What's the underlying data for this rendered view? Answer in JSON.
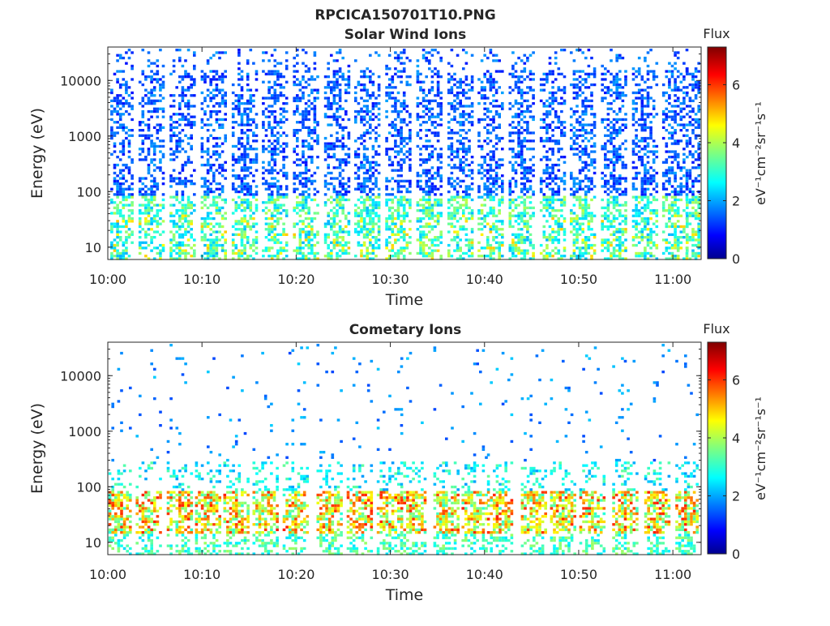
{
  "figure": {
    "title": "RPCICA150701T10.PNG"
  },
  "chart_data": [
    {
      "type": "heatmap",
      "title": "Solar Wind Ions",
      "xlabel": "Time",
      "ylabel": "Energy (eV)",
      "x_tick_labels": [
        "10:00",
        "10:10",
        "10:20",
        "10:30",
        "10:40",
        "10:50",
        "11:00"
      ],
      "xlim_minutes": [
        0,
        63
      ],
      "y_scale": "log",
      "y_tick_labels": [
        "10",
        "100",
        "1000",
        "10000"
      ],
      "ylim": [
        6,
        40000
      ],
      "colorbar": {
        "label": "Flux",
        "units": "eV⁻¹cm⁻²sr⁻¹s⁻¹",
        "tick_labels": [
          "0",
          "2",
          "4",
          "6"
        ],
        "range": [
          0,
          7.3
        ],
        "colormap": "jet"
      },
      "bursts_minutes": [
        1.2,
        4.5,
        7.8,
        11.1,
        14.4,
        17.6,
        20.9,
        24.2,
        27.4,
        30.7,
        34.0,
        37.3,
        40.5,
        43.8,
        47.1,
        50.3,
        53.6,
        56.9,
        60.1,
        62.6
      ],
      "description_grid": "grid off",
      "colors": {
        "low": "#00008f",
        "mid": "#1f7fff",
        "high": "#ff3f00"
      }
    },
    {
      "type": "heatmap",
      "title": "Cometary Ions",
      "xlabel": "Time",
      "ylabel": "Energy (eV)",
      "x_tick_labels": [
        "10:00",
        "10:10",
        "10:20",
        "10:30",
        "10:40",
        "10:50",
        "11:00"
      ],
      "xlim_minutes": [
        0,
        63
      ],
      "y_scale": "log",
      "y_tick_labels": [
        "10",
        "100",
        "1000",
        "10000"
      ],
      "ylim": [
        6,
        40000
      ],
      "colorbar": {
        "label": "Flux",
        "units": "eV⁻¹cm⁻²sr⁻¹s⁻¹",
        "tick_labels": [
          "0",
          "2",
          "4",
          "6"
        ],
        "range": [
          0,
          7.3
        ],
        "colormap": "jet"
      },
      "bursts_minutes": [
        1.0,
        4.2,
        7.5,
        10.5,
        13.5,
        16.6,
        19.8,
        23.4,
        26.6,
        29.8,
        32.3,
        35.8,
        38.8,
        41.5,
        45.1,
        48.2,
        51.3,
        54.8,
        58.2,
        61.5
      ],
      "description_grid": "grid off",
      "colors": {
        "low": "#00008f",
        "mid": "#40ff7f",
        "high": "#c80000"
      }
    }
  ]
}
